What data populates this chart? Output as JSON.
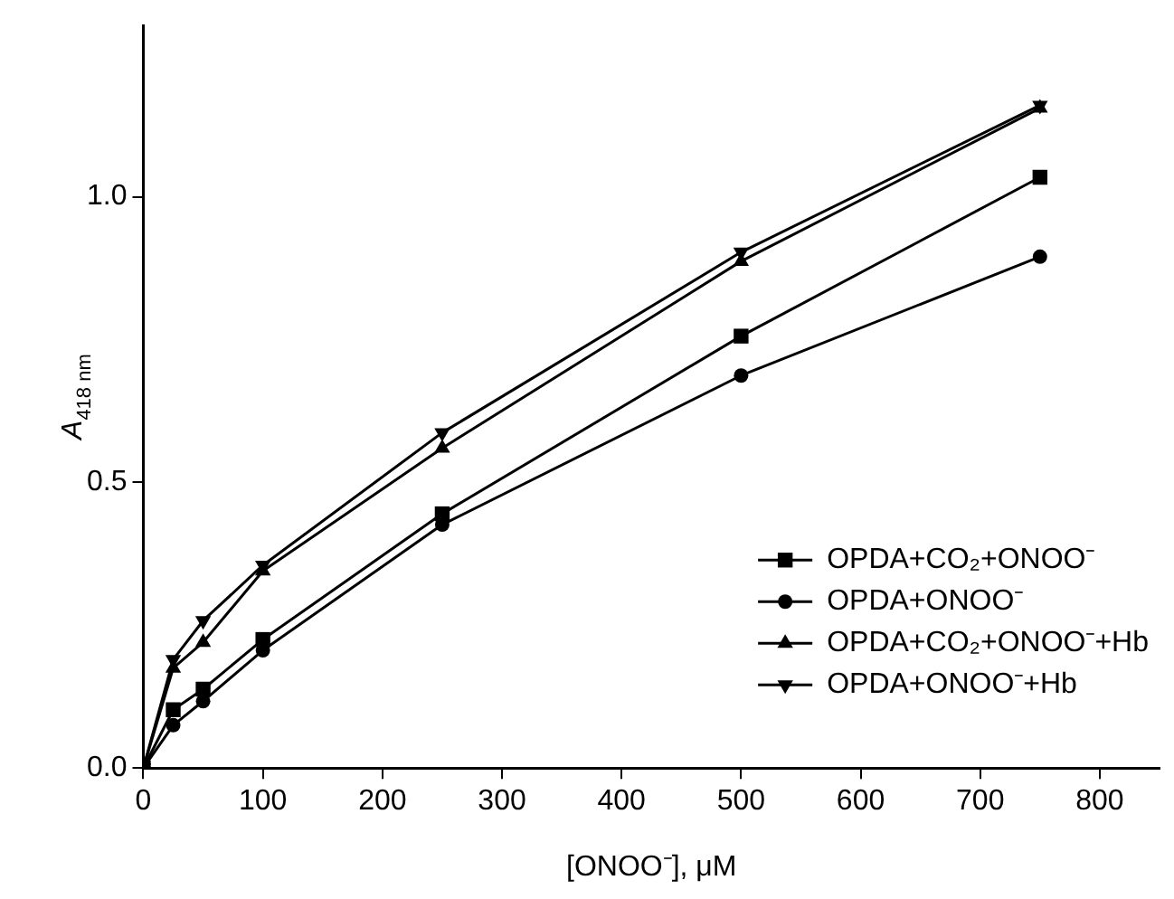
{
  "chart_data": {
    "type": "line",
    "xlabel": "[ONOO⁻], μM",
    "ylabel": "A$_{418 nm}$",
    "x": [
      0,
      25,
      50,
      100,
      250,
      500,
      750
    ],
    "series": [
      {
        "name": "OPDA+CO₂+ONOO⁻",
        "color": "#000000",
        "marker": "square",
        "values": [
          0,
          0.102,
          0.138,
          0.225,
          0.445,
          0.756,
          1.034
        ]
      },
      {
        "name": "OPDA+ONOO⁻",
        "color": "#000000",
        "marker": "circle",
        "values": [
          0,
          0.075,
          0.117,
          0.206,
          0.426,
          0.687,
          0.895
        ]
      },
      {
        "name": "OPDA+CO₂+ONOO⁻+Hb",
        "color": "#000000",
        "marker": "triangle",
        "values": [
          0,
          0.175,
          0.22,
          0.345,
          0.56,
          0.887,
          1.155
        ]
      },
      {
        "name": "OPDA+ONOO⁻+Hb",
        "color": "#000000",
        "marker": "triangle-down",
        "values": [
          0,
          0.19,
          0.258,
          0.355,
          0.587,
          0.903,
          1.16
        ]
      }
    ],
    "xlim": [
      0,
      850
    ],
    "xticks": [
      0,
      100,
      200,
      300,
      400,
      500,
      600,
      700,
      800
    ],
    "ylim": [
      0,
      1.3
    ],
    "yticks": [
      {
        "value": 0,
        "label": "0.0"
      },
      {
        "value": 0.5,
        "label": "0.5"
      },
      {
        "value": 1,
        "label": "1.0"
      }
    ],
    "grid": false,
    "legend": "right",
    "line_style": "solid"
  }
}
